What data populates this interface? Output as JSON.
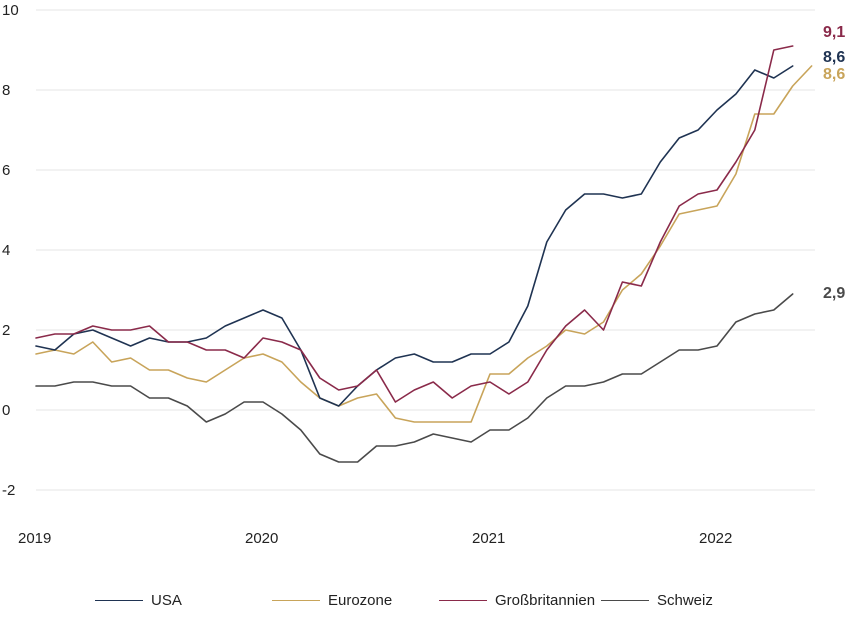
{
  "chart_data": {
    "type": "line",
    "title": "",
    "xlabel": "",
    "ylabel": "",
    "ylim": [
      -2,
      10
    ],
    "yticks": [
      10,
      8,
      6,
      4,
      2,
      0,
      -2
    ],
    "yticks_labels": [
      "10",
      "8",
      "6",
      "4",
      "2",
      "0",
      "-2"
    ],
    "xticks_labels": [
      "2019",
      "2020",
      "2021",
      "2022"
    ],
    "x_start": "2019-01",
    "grid": "horizontal",
    "legend_position": "bottom",
    "series": [
      {
        "name": "USA",
        "color": "#1f3352",
        "end_label": "8,6",
        "values": [
          1.6,
          1.5,
          1.9,
          2.0,
          1.8,
          1.6,
          1.8,
          1.7,
          1.7,
          1.8,
          2.1,
          2.3,
          2.5,
          2.3,
          1.5,
          0.3,
          0.1,
          0.6,
          1.0,
          1.3,
          1.4,
          1.2,
          1.2,
          1.4,
          1.4,
          1.7,
          2.6,
          4.2,
          5.0,
          5.4,
          5.4,
          5.3,
          5.4,
          6.2,
          6.8,
          7.0,
          7.5,
          7.9,
          8.5,
          8.3,
          8.6
        ]
      },
      {
        "name": "Eurozone",
        "color": "#c8a45a",
        "end_label": "8,6",
        "values": [
          1.4,
          1.5,
          1.4,
          1.7,
          1.2,
          1.3,
          1.0,
          1.0,
          0.8,
          0.7,
          1.0,
          1.3,
          1.4,
          1.2,
          0.7,
          0.3,
          0.1,
          0.3,
          0.4,
          -0.2,
          -0.3,
          -0.3,
          -0.3,
          -0.3,
          0.9,
          0.9,
          1.3,
          1.6,
          2.0,
          1.9,
          2.2,
          3.0,
          3.4,
          4.1,
          4.9,
          5.0,
          5.1,
          5.9,
          7.4,
          7.4,
          8.1,
          8.6
        ]
      },
      {
        "name": "Großbritannien",
        "color": "#8a2a4a",
        "end_label": "9,1",
        "values": [
          1.8,
          1.9,
          1.9,
          2.1,
          2.0,
          2.0,
          2.1,
          1.7,
          1.7,
          1.5,
          1.5,
          1.3,
          1.8,
          1.7,
          1.5,
          0.8,
          0.5,
          0.6,
          1.0,
          0.2,
          0.5,
          0.7,
          0.3,
          0.6,
          0.7,
          0.4,
          0.7,
          1.5,
          2.1,
          2.5,
          2.0,
          3.2,
          3.1,
          4.2,
          5.1,
          5.4,
          5.5,
          6.2,
          7.0,
          9.0,
          9.1
        ]
      },
      {
        "name": "Schweiz",
        "color": "#4a4a4a",
        "end_label": "2,9",
        "values": [
          0.6,
          0.6,
          0.7,
          0.7,
          0.6,
          0.6,
          0.3,
          0.3,
          0.1,
          -0.3,
          -0.1,
          0.2,
          0.2,
          -0.1,
          -0.5,
          -1.1,
          -1.3,
          -1.3,
          -0.9,
          -0.9,
          -0.8,
          -0.6,
          -0.7,
          -0.8,
          -0.5,
          -0.5,
          -0.2,
          0.3,
          0.6,
          0.6,
          0.7,
          0.9,
          0.9,
          1.2,
          1.5,
          1.5,
          1.6,
          2.2,
          2.4,
          2.5,
          2.9
        ]
      }
    ]
  }
}
